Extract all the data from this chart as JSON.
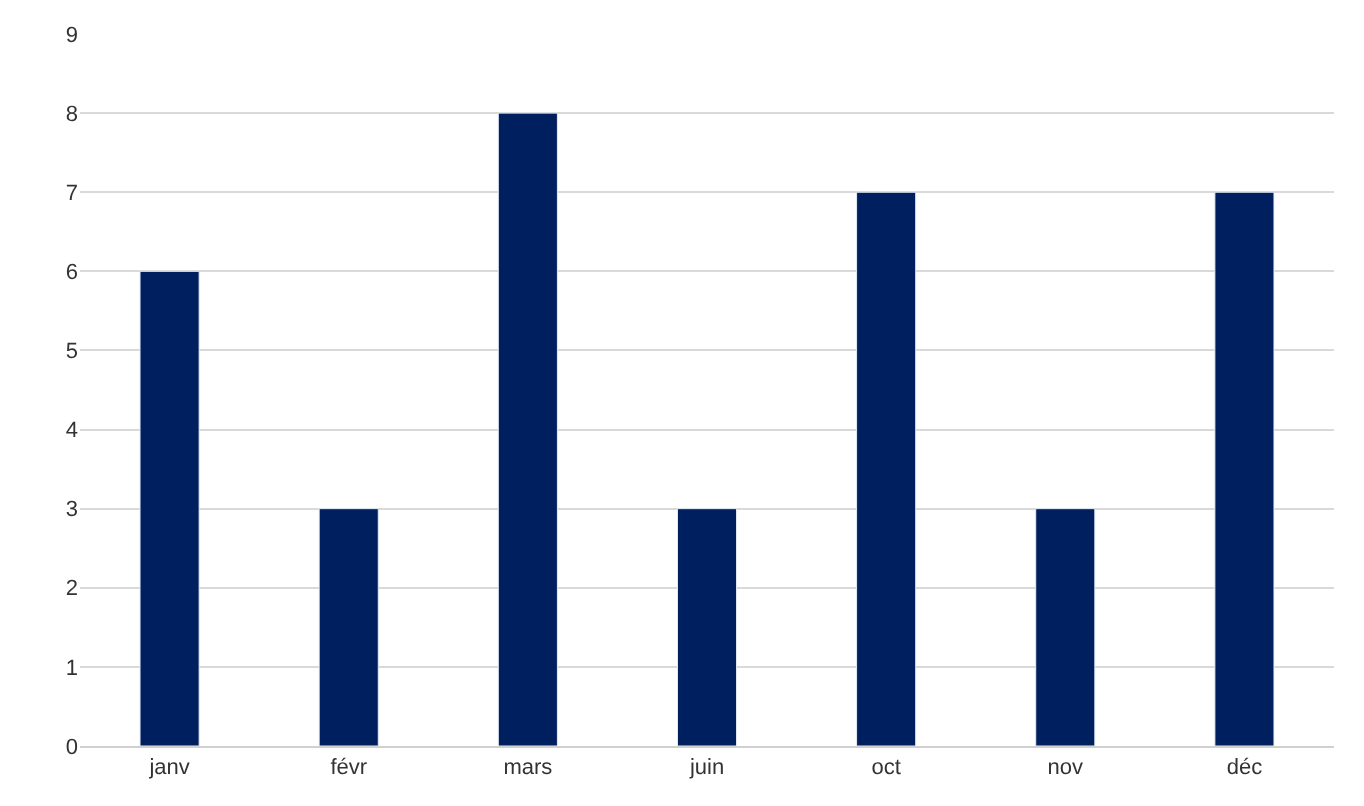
{
  "chart_data": {
    "type": "bar",
    "categories": [
      "janv",
      "févr",
      "mars",
      "juin",
      "oct",
      "nov",
      "déc"
    ],
    "values": [
      6,
      3,
      8,
      3,
      7,
      3,
      7
    ],
    "color": "#001f5f",
    "ylim": [
      0,
      9
    ],
    "yticks": [
      0,
      1,
      2,
      3,
      4,
      5,
      6,
      7,
      8,
      9
    ],
    "grid": "y"
  }
}
